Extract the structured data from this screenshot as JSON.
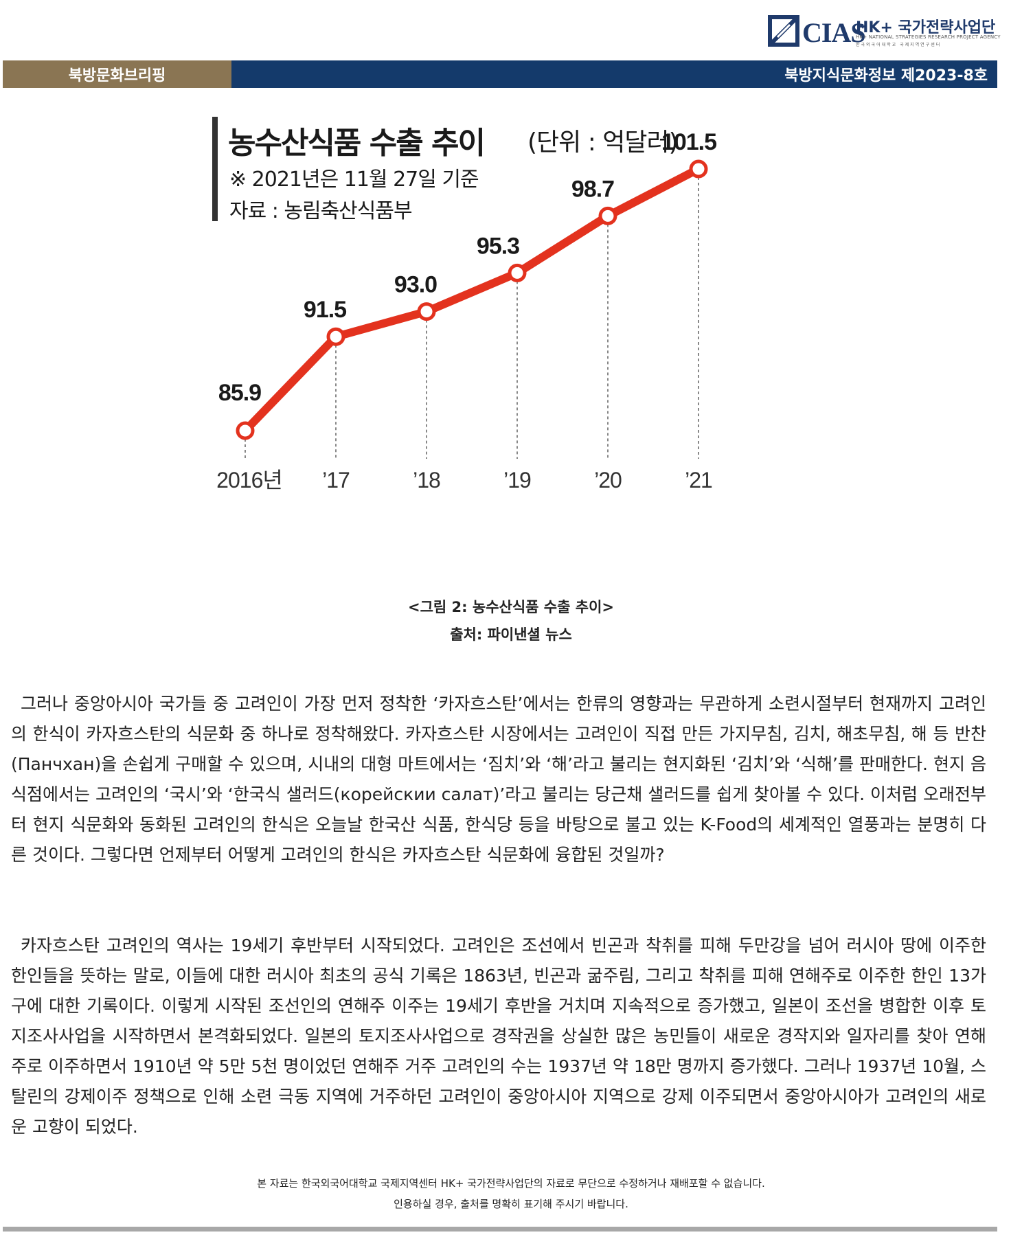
{
  "logo": {
    "name": "CIAS",
    "title": "HK+ 국가전략사업단",
    "subtitle": "HK+ NATIONAL STRATEGIES RESEARCH PROJECT AGENCY",
    "subtitle_ko": "한국외국어대학교 국제지역연구센터"
  },
  "header": {
    "left": "북방문화브리핑",
    "right": "북방지식문화정보 제2023-8호"
  },
  "chart_data": {
    "type": "line",
    "title": "농수산식품 수출 추이",
    "unit": "(단위 : 억달러)",
    "note": "※ 2021년은 11월 27일 기준",
    "source": "자료 : 농림축산식품부",
    "categories": [
      "2016년",
      "’17",
      "’18",
      "’19",
      "’20",
      "’21"
    ],
    "values": [
      85.9,
      91.5,
      93.0,
      95.3,
      98.7,
      101.5
    ],
    "value_labels": [
      "85.9",
      "91.5",
      "93.0",
      "95.3",
      "98.7",
      "101.5"
    ],
    "line_color": "#e3321e",
    "legend": "none",
    "grid": false
  },
  "caption": {
    "figure": "<그림 2: 농수산식품 수출 추이>",
    "source": "출처: 파이낸셜 뉴스"
  },
  "body": {
    "para1": "그러나 중앙아시아 국가들 중 고려인이 가장 먼저 정착한 ‘카자흐스탄’에서는 한류의 영향과는 무관하게 소련시절부터 현재까지 고려인의 한식이 카자흐스탄의 식문화 중 하나로 정착해왔다. 카자흐스탄 시장에서는 고려인이 직접 만든 가지무침, 김치, 해초무침, 해 등 반찬(Панчхан)을 손쉽게 구매할 수 있으며, 시내의 대형 마트에서는 ‘짐치’와 ‘해’라고 불리는 현지화된 ‘김치’와 ‘식해’를 판매한다. 현지 음식점에서는 고려인의 ‘국시’와 ‘한국식 샐러드(корейскии салат)’라고 불리는 당근채 샐러드를 쉽게 찾아볼 수 있다. 이처럼 오래전부터 현지 식문화와 동화된 고려인의 한식은 오늘날 한국산 식품, 한식당 등을 바탕으로 불고 있는 K-Food의 세계적인 열풍과는 분명히 다른 것이다. 그렇다면 언제부터 어떻게 고려인의 한식은 카자흐스탄 식문화에 융합된 것일까?",
    "para2": "카자흐스탄 고려인의 역사는 19세기 후반부터 시작되었다. 고려인은 조선에서 빈곤과 착취를 피해 두만강을 넘어 러시아 땅에 이주한 한인들을 뜻하는 말로, 이들에 대한 러시아 최초의 공식 기록은 1863년, 빈곤과 굶주림, 그리고 착취를 피해 연해주로 이주한 한인 13가구에 대한 기록이다. 이렇게 시작된 조선인의 연해주 이주는 19세기 후반을 거치며 지속적으로 증가했고, 일본이 조선을 병합한 이후 토지조사사업을 시작하면서 본격화되었다. 일본의 토지조사사업으로 경작권을 상실한 많은 농민들이 새로운 경작지와 일자리를 찾아 연해주로 이주하면서 1910년 약 5만 5천 명이었던 연해주 거주 고려인의 수는 1937년 약 18만 명까지 증가했다. 그러나 1937년 10월, 스탈린의 강제이주 정책으로 인해 소련 극동 지역에 거주하던 고려인이 중앙아시아 지역으로 강제 이주되면서 중앙아시아가 고려인의 새로운 고향이 되었다."
  },
  "footer": {
    "line1": "본 자료는 한국외국어대학교 국제지역센터 HK+ 국가전략사업단의 자료로 무단으로 수정하거나 재배포할 수 없습니다.",
    "line2": "인용하실 경우, 출처를 명확히 표기해 주시기 바랍니다."
  }
}
